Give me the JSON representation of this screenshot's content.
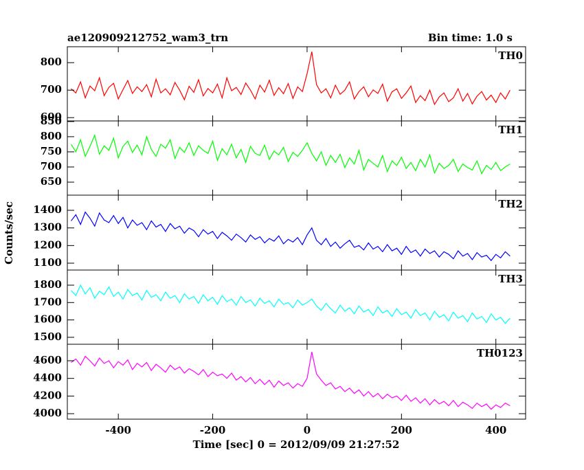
{
  "chart_data": {
    "type": "line",
    "title": "ae120909212752_wam3_trn",
    "subtitle": "Bin time: 1.0 s",
    "xlabel": "Time [sec] 0 = 2012/09/09 21:27:52",
    "ylabel": "Counts/sec",
    "xlim": [
      -508,
      463
    ],
    "xticks": [
      -400,
      -200,
      0,
      200,
      400
    ],
    "x": [
      -500,
      -490,
      -480,
      -470,
      -460,
      -450,
      -440,
      -430,
      -420,
      -410,
      -400,
      -390,
      -380,
      -370,
      -360,
      -350,
      -340,
      -330,
      -320,
      -310,
      -300,
      -290,
      -280,
      -270,
      -260,
      -250,
      -240,
      -230,
      -220,
      -210,
      -200,
      -190,
      -180,
      -170,
      -160,
      -150,
      -140,
      -130,
      -120,
      -110,
      -100,
      -90,
      -80,
      -70,
      -60,
      -50,
      -40,
      -30,
      -20,
      -10,
      0,
      10,
      20,
      30,
      40,
      50,
      60,
      70,
      80,
      90,
      100,
      110,
      120,
      130,
      140,
      150,
      160,
      170,
      180,
      190,
      200,
      210,
      220,
      230,
      240,
      250,
      260,
      270,
      280,
      290,
      300,
      310,
      320,
      330,
      340,
      350,
      360,
      370,
      380,
      390,
      400,
      410,
      420,
      430
    ],
    "series": [
      {
        "name": "TH0",
        "color": "#ff0000",
        "ylim": [
          588,
          858
        ],
        "yticks": [
          600,
          700,
          800
        ],
        "values": [
          705,
          690,
          730,
          672,
          715,
          698,
          745,
          680,
          710,
          725,
          668,
          702,
          735,
          688,
          712,
          695,
          720,
          676,
          740,
          690,
          705,
          683,
          728,
          700,
          665,
          714,
          692,
          738,
          679,
          706,
          690,
          722,
          672,
          745,
          698,
          710,
          684,
          726,
          700,
          668,
          718,
          693,
          736,
          681,
          709,
          687,
          724,
          670,
          712,
          695,
          760,
          840,
          720,
          690,
          705,
          672,
          718,
          685,
          700,
          730,
          668,
          695,
          712,
          676,
          701,
          688,
          722,
          660,
          694,
          705,
          670,
          690,
          715,
          655,
          680,
          662,
          700,
          648,
          675,
          690,
          658,
          672,
          705,
          660,
          688,
          650,
          678,
          695,
          664,
          682,
          655,
          690,
          668,
          700
        ]
      },
      {
        "name": "TH1",
        "color": "#00ff00",
        "ylim": [
          607,
          852
        ],
        "yticks": [
          650,
          700,
          750,
          800,
          850
        ],
        "values": [
          775,
          750,
          790,
          735,
          768,
          805,
          742,
          770,
          755,
          795,
          730,
          768,
          785,
          748,
          772,
          740,
          800,
          758,
          735,
          775,
          762,
          790,
          728,
          765,
          748,
          780,
          738,
          770,
          755,
          745,
          785,
          722,
          760,
          740,
          775,
          730,
          758,
          715,
          768,
          745,
          738,
          772,
          725,
          752,
          740,
          765,
          718,
          748,
          735,
          755,
          780,
          745,
          720,
          750,
          705,
          738,
          715,
          742,
          698,
          730,
          710,
          755,
          690,
          725,
          712,
          700,
          738,
          685,
          720,
          705,
          732,
          695,
          715,
          688,
          725,
          700,
          740,
          680,
          712,
          695,
          705,
          725,
          685,
          710,
          698,
          690,
          720,
          678,
          705,
          692,
          715,
          688,
          700,
          710
        ]
      },
      {
        "name": "TH2",
        "color": "#0000ff",
        "ylim": [
          1061,
          1486
        ],
        "yticks": [
          1100,
          1200,
          1300,
          1400
        ],
        "values": [
          1340,
          1375,
          1320,
          1390,
          1355,
          1310,
          1385,
          1345,
          1330,
          1370,
          1325,
          1360,
          1300,
          1345,
          1315,
          1330,
          1290,
          1340,
          1305,
          1320,
          1280,
          1325,
          1295,
          1310,
          1270,
          1300,
          1285,
          1250,
          1290,
          1265,
          1280,
          1240,
          1275,
          1255,
          1230,
          1265,
          1245,
          1220,
          1260,
          1235,
          1250,
          1215,
          1240,
          1225,
          1255,
          1210,
          1235,
          1220,
          1245,
          1205,
          1260,
          1300,
          1230,
          1205,
          1240,
          1195,
          1220,
          1185,
          1210,
          1230,
          1190,
          1200,
          1175,
          1215,
          1180,
          1195,
          1165,
          1205,
          1170,
          1185,
          1150,
          1195,
          1160,
          1175,
          1140,
          1180,
          1155,
          1170,
          1135,
          1165,
          1150,
          1125,
          1170,
          1140,
          1155,
          1120,
          1160,
          1135,
          1145,
          1115,
          1150,
          1130,
          1165,
          1140
        ]
      },
      {
        "name": "TH3",
        "color": "#00ffff",
        "ylim": [
          1460,
          1887
        ],
        "yticks": [
          1500,
          1600,
          1700,
          1800
        ],
        "values": [
          1770,
          1740,
          1800,
          1750,
          1785,
          1725,
          1765,
          1745,
          1790,
          1735,
          1760,
          1720,
          1775,
          1740,
          1755,
          1715,
          1770,
          1730,
          1745,
          1710,
          1760,
          1725,
          1740,
          1700,
          1750,
          1720,
          1735,
          1695,
          1745,
          1710,
          1730,
          1690,
          1740,
          1705,
          1720,
          1685,
          1735,
          1700,
          1715,
          1680,
          1725,
          1695,
          1710,
          1675,
          1720,
          1690,
          1700,
          1670,
          1715,
          1685,
          1700,
          1720,
          1680,
          1655,
          1695,
          1665,
          1640,
          1685,
          1650,
          1670,
          1635,
          1680,
          1645,
          1660,
          1625,
          1675,
          1640,
          1655,
          1620,
          1665,
          1630,
          1645,
          1610,
          1660,
          1625,
          1640,
          1600,
          1650,
          1615,
          1630,
          1595,
          1645,
          1610,
          1625,
          1590,
          1640,
          1605,
          1620,
          1585,
          1635,
          1600,
          1615,
          1580,
          1610
        ]
      },
      {
        "name": "TH0123",
        "color": "#ff00ff",
        "ylim": [
          3938,
          4787
        ],
        "yticks": [
          4000,
          4200,
          4400,
          4600
        ],
        "values": [
          4580,
          4620,
          4550,
          4650,
          4600,
          4540,
          4630,
          4570,
          4600,
          4520,
          4590,
          4550,
          4610,
          4500,
          4570,
          4530,
          4580,
          4490,
          4560,
          4520,
          4470,
          4550,
          4500,
          4530,
          4460,
          4510,
          4480,
          4440,
          4500,
          4420,
          4470,
          4430,
          4450,
          4400,
          4460,
          4380,
          4420,
          4360,
          4410,
          4340,
          4390,
          4330,
          4380,
          4300,
          4370,
          4320,
          4350,
          4290,
          4340,
          4310,
          4400,
          4700,
          4450,
          4380,
          4320,
          4350,
          4280,
          4310,
          4250,
          4290,
          4230,
          4270,
          4200,
          4250,
          4190,
          4230,
          4170,
          4220,
          4180,
          4200,
          4150,
          4210,
          4140,
          4180,
          4120,
          4170,
          4100,
          4160,
          4110,
          4140,
          4090,
          4150,
          4080,
          4130,
          4100,
          4060,
          4120,
          4080,
          4110,
          4050,
          4100,
          4070,
          4120,
          4090
        ]
      }
    ]
  }
}
